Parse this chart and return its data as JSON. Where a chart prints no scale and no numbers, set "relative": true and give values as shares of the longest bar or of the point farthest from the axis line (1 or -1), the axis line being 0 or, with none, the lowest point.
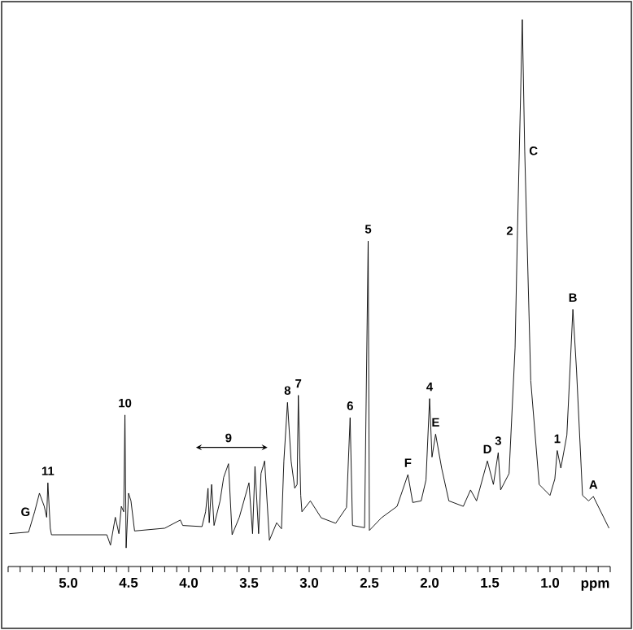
{
  "chart_data": {
    "type": "line",
    "relative": true,
    "xlabel": "ppm",
    "xlim": [
      5.5,
      0.5
    ],
    "xticks": [
      {
        "value": 5.5,
        "label": null
      },
      {
        "value": 5.4,
        "label": null
      },
      {
        "value": 5.3,
        "label": null
      },
      {
        "value": 5.2,
        "label": null
      },
      {
        "value": 5.1,
        "label": null
      },
      {
        "value": 5.0,
        "label": "5.0"
      },
      {
        "value": 4.9,
        "label": null
      },
      {
        "value": 4.8,
        "label": null
      },
      {
        "value": 4.7,
        "label": null
      },
      {
        "value": 4.6,
        "label": null
      },
      {
        "value": 4.5,
        "label": "4.5"
      },
      {
        "value": 4.4,
        "label": null
      },
      {
        "value": 4.3,
        "label": null
      },
      {
        "value": 4.2,
        "label": null
      },
      {
        "value": 4.1,
        "label": null
      },
      {
        "value": 4.0,
        "label": "4.0"
      },
      {
        "value": 3.9,
        "label": null
      },
      {
        "value": 3.8,
        "label": null
      },
      {
        "value": 3.7,
        "label": null
      },
      {
        "value": 3.6,
        "label": null
      },
      {
        "value": 3.5,
        "label": "3.5"
      },
      {
        "value": 3.4,
        "label": null
      },
      {
        "value": 3.3,
        "label": null
      },
      {
        "value": 3.2,
        "label": null
      },
      {
        "value": 3.1,
        "label": null
      },
      {
        "value": 3.0,
        "label": "3.0"
      },
      {
        "value": 2.9,
        "label": null
      },
      {
        "value": 2.8,
        "label": null
      },
      {
        "value": 2.7,
        "label": null
      },
      {
        "value": 2.6,
        "label": null
      },
      {
        "value": 2.5,
        "label": "2.5"
      },
      {
        "value": 2.4,
        "label": null
      },
      {
        "value": 2.3,
        "label": null
      },
      {
        "value": 2.2,
        "label": null
      },
      {
        "value": 2.1,
        "label": null
      },
      {
        "value": 2.0,
        "label": "2.0"
      },
      {
        "value": 1.9,
        "label": null
      },
      {
        "value": 1.8,
        "label": null
      },
      {
        "value": 1.7,
        "label": null
      },
      {
        "value": 1.6,
        "label": null
      },
      {
        "value": 1.5,
        "label": "1.5"
      },
      {
        "value": 1.4,
        "label": null
      },
      {
        "value": 1.3,
        "label": null
      },
      {
        "value": 1.2,
        "label": null
      },
      {
        "value": 1.1,
        "label": null
      },
      {
        "value": 1.0,
        "label": "1.0"
      },
      {
        "value": 0.9,
        "label": null
      },
      {
        "value": 0.8,
        "label": null
      },
      {
        "value": 0.7,
        "label": null
      },
      {
        "value": 0.6,
        "label": null
      },
      {
        "value": 0.5,
        "label": null
      }
    ],
    "tick_labels": "x",
    "grid": false,
    "series": [
      {
        "color": "#000000",
        "x": [
          5.49,
          5.33,
          5.28,
          5.24,
          5.2,
          5.18,
          5.17,
          5.15,
          5.14,
          4.68,
          4.65,
          4.61,
          4.58,
          4.56,
          4.54,
          4.53,
          4.52,
          4.5,
          4.48,
          4.45,
          4.2,
          4.07,
          4.05,
          3.89,
          3.86,
          3.84,
          3.83,
          3.81,
          3.79,
          3.74,
          3.71,
          3.67,
          3.64,
          3.58,
          3.5,
          3.47,
          3.45,
          3.42,
          3.4,
          3.37,
          3.33,
          3.27,
          3.23,
          3.21,
          3.18,
          3.15,
          3.12,
          3.1,
          3.09,
          3.07,
          3.06,
          2.99,
          2.9,
          2.78,
          2.69,
          2.66,
          2.64,
          2.54,
          2.51,
          2.5,
          2.4,
          2.27,
          2.18,
          2.14,
          2.07,
          2.03,
          2.0,
          1.98,
          1.95,
          1.9,
          1.84,
          1.72,
          1.66,
          1.61,
          1.52,
          1.47,
          1.43,
          1.41,
          1.34,
          1.29,
          1.27,
          1.23,
          1.21,
          1.16,
          1.09,
          1.0,
          0.96,
          0.94,
          0.91,
          0.86,
          0.81,
          0.78,
          0.73,
          0.68,
          0.64,
          0.51
        ],
        "values": [
          0.06,
          0.063,
          0.1,
          0.134,
          0.11,
          0.09,
          0.153,
          0.07,
          0.058,
          0.058,
          0.039,
          0.09,
          0.06,
          0.11,
          0.1,
          0.277,
          0.034,
          0.134,
          0.12,
          0.065,
          0.07,
          0.085,
          0.075,
          0.073,
          0.1,
          0.143,
          0.08,
          0.15,
          0.075,
          0.12,
          0.163,
          0.188,
          0.058,
          0.09,
          0.153,
          0.06,
          0.183,
          0.06,
          0.17,
          0.193,
          0.048,
          0.08,
          0.069,
          0.193,
          0.3,
          0.193,
          0.143,
          0.15,
          0.313,
          0.13,
          0.1,
          0.12,
          0.089,
          0.079,
          0.108,
          0.272,
          0.075,
          0.071,
          0.595,
          0.066,
          0.089,
          0.11,
          0.168,
          0.117,
          0.12,
          0.158,
          0.307,
          0.2,
          0.242,
          0.18,
          0.12,
          0.11,
          0.14,
          0.12,
          0.193,
          0.15,
          0.208,
          0.14,
          0.17,
          0.4,
          0.614,
          1.0,
          0.76,
          0.34,
          0.15,
          0.13,
          0.16,
          0.212,
          0.18,
          0.24,
          0.47,
          0.36,
          0.13,
          0.12,
          0.128,
          0.07
        ]
      }
    ],
    "annotations": [
      {
        "text": "G",
        "x": 5.28,
        "y": 0.1
      },
      {
        "text": "11",
        "x": 5.17,
        "y": 0.153
      },
      {
        "text": "10",
        "x": 4.53,
        "y": 0.277
      },
      {
        "text": "9",
        "x": 3.67,
        "y": 0.188
      },
      {
        "text": "8",
        "x": 3.18,
        "y": 0.3
      },
      {
        "text": "7",
        "x": 3.09,
        "y": 0.313
      },
      {
        "text": "6",
        "x": 2.66,
        "y": 0.272
      },
      {
        "text": "5",
        "x": 2.51,
        "y": 0.595
      },
      {
        "text": "4",
        "x": 2.0,
        "y": 0.307
      },
      {
        "text": "F",
        "x": 2.18,
        "y": 0.168
      },
      {
        "text": "E",
        "x": 1.95,
        "y": 0.242
      },
      {
        "text": "D",
        "x": 1.52,
        "y": 0.193
      },
      {
        "text": "3",
        "x": 1.43,
        "y": 0.208
      },
      {
        "text": "2",
        "x": 1.27,
        "y": 0.614
      },
      {
        "text": "C",
        "x": 1.21,
        "y": 0.76
      },
      {
        "text": "1",
        "x": 0.94,
        "y": 0.212
      },
      {
        "text": "B",
        "x": 0.81,
        "y": 0.47
      },
      {
        "text": "A",
        "x": 0.64,
        "y": 0.128
      }
    ]
  }
}
